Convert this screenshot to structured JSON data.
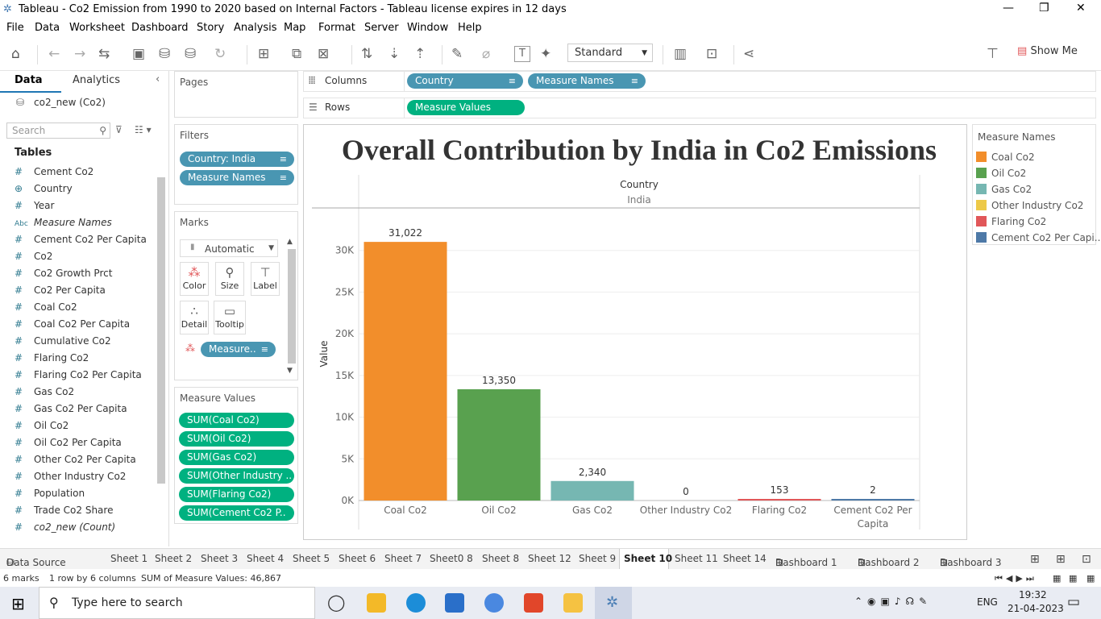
{
  "window": {
    "title": "Tableau - Co2 Emission from 1990 to 2020 based on Internal Factors - Tableau license expires in 12 days"
  },
  "menu": [
    "File",
    "Data",
    "Worksheet",
    "Dashboard",
    "Story",
    "Analysis",
    "Map",
    "Format",
    "Server",
    "Window",
    "Help"
  ],
  "toolbar": {
    "standard": "Standard",
    "show_me": "Show Me"
  },
  "datapane": {
    "tab_data": "Data",
    "tab_analytics": "Analytics",
    "datasource": "co2_new (Co2)",
    "search_placeholder": "Search",
    "tables": "Tables",
    "fields": [
      {
        "t": "#",
        "n": "Cement Co2"
      },
      {
        "t": "⊕",
        "n": "Country"
      },
      {
        "t": "#",
        "n": "Year"
      },
      {
        "t": "Abc",
        "n": "Measure Names"
      },
      {
        "t": "#",
        "n": "Cement Co2 Per Capita"
      },
      {
        "t": "#",
        "n": "Co2"
      },
      {
        "t": "#",
        "n": "Co2 Growth Prct"
      },
      {
        "t": "#",
        "n": "Co2 Per Capita"
      },
      {
        "t": "#",
        "n": "Coal Co2"
      },
      {
        "t": "#",
        "n": "Coal Co2 Per Capita"
      },
      {
        "t": "#",
        "n": "Cumulative Co2"
      },
      {
        "t": "#",
        "n": "Flaring Co2"
      },
      {
        "t": "#",
        "n": "Flaring Co2 Per Capita"
      },
      {
        "t": "#",
        "n": "Gas Co2"
      },
      {
        "t": "#",
        "n": "Gas Co2 Per Capita"
      },
      {
        "t": "#",
        "n": "Oil Co2"
      },
      {
        "t": "#",
        "n": "Oil Co2 Per Capita"
      },
      {
        "t": "#",
        "n": "Other Co2 Per Capita"
      },
      {
        "t": "#",
        "n": "Other Industry Co2"
      },
      {
        "t": "#",
        "n": "Population"
      },
      {
        "t": "#",
        "n": "Trade Co2 Share"
      },
      {
        "t": "#",
        "n": "co2_new (Count)"
      }
    ]
  },
  "pages": {
    "title": "Pages"
  },
  "filters": {
    "title": "Filters",
    "items": [
      "Country: India",
      "Measure Names"
    ]
  },
  "marks": {
    "title": "Marks",
    "type": "Automatic",
    "buttons": [
      "Color",
      "Size",
      "Label",
      "Detail",
      "Tooltip"
    ],
    "pill": "Measure.."
  },
  "measure_values": {
    "title": "Measure Values",
    "items": [
      "SUM(Coal Co2)",
      "SUM(Oil Co2)",
      "SUM(Gas Co2)",
      "SUM(Other Industry ..",
      "SUM(Flaring Co2)",
      "SUM(Cement Co2 P.."
    ]
  },
  "shelves": {
    "columns_label": "Columns",
    "rows_label": "Rows",
    "columns": [
      "Country",
      "Measure Names"
    ],
    "rows": [
      "Measure Values"
    ]
  },
  "chart_data": {
    "type": "bar",
    "title": "Overall Contribution by India in Co2 Emissions",
    "header_title": "Country",
    "header_value": "India",
    "ylabel": "Value",
    "ylim": [
      0,
      32000
    ],
    "yticks": [
      {
        "v": 0,
        "label": "0K"
      },
      {
        "v": 5000,
        "label": "5K"
      },
      {
        "v": 10000,
        "label": "10K"
      },
      {
        "v": 15000,
        "label": "15K"
      },
      {
        "v": 20000,
        "label": "20K"
      },
      {
        "v": 25000,
        "label": "25K"
      },
      {
        "v": 30000,
        "label": "30K"
      }
    ],
    "categories": [
      "Coal Co2",
      "Oil Co2",
      "Gas Co2",
      "Other Industry Co2",
      "Flaring Co2",
      "Cement Co2 Per Capita"
    ],
    "cat_labels": [
      [
        "Coal Co2"
      ],
      [
        "Oil Co2"
      ],
      [
        "Gas Co2"
      ],
      [
        "Other Industry Co2"
      ],
      [
        "Flaring Co2"
      ],
      [
        "Cement Co2 Per",
        "Capita"
      ]
    ],
    "values": [
      31022,
      13350,
      2340,
      0,
      153,
      2
    ],
    "value_labels": [
      "31,022",
      "13,350",
      "2,340",
      "0",
      "153",
      "2"
    ],
    "colors": [
      "#f28e2b",
      "#59a14f",
      "#76b7b2",
      "#edc948",
      "#e15759",
      "#4e79a7"
    ]
  },
  "legend": {
    "title": "Measure Names",
    "items": [
      "Coal Co2",
      "Oil Co2",
      "Gas Co2",
      "Other Industry Co2",
      "Flaring Co2",
      "Cement Co2 Per Capi.."
    ],
    "colors": [
      "#f28e2b",
      "#59a14f",
      "#76b7b2",
      "#edc948",
      "#e15759",
      "#4e79a7"
    ]
  },
  "sheet_tabs": [
    "Data Source",
    "Sheet 1",
    "Sheet 2",
    "Sheet 3",
    "Sheet 4",
    "Sheet 5",
    "Sheet 6",
    "Sheet 7",
    "Sheet0 8",
    "Sheet 8",
    "Sheet 12",
    "Sheet 9",
    "Sheet 10",
    "Sheet 11",
    "Sheet 14",
    "Dashboard 1",
    "Dashboard 2",
    "Dashboard 3"
  ],
  "status": {
    "marks": "6 marks",
    "rows": "1 row by 6 columns",
    "sum": "SUM of Measure Values: 46,867"
  },
  "taskbar": {
    "search": "Type here to search",
    "lang": "ENG",
    "time": "19:32",
    "date": "21-04-2023"
  }
}
